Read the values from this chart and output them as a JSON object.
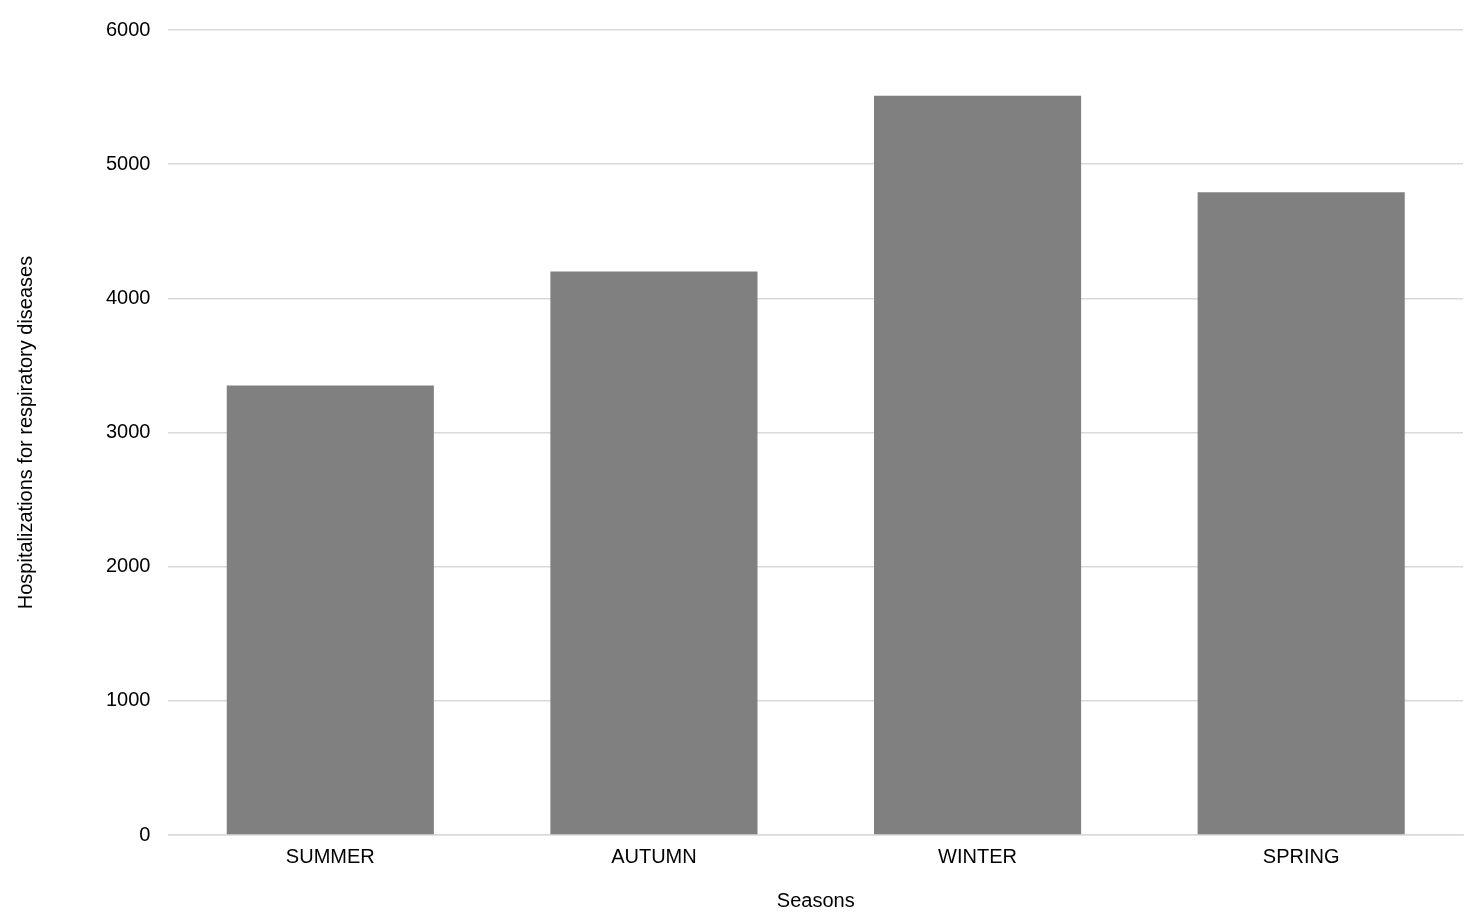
{
  "chart_data": {
    "type": "bar",
    "xlabel": "Seasons",
    "ylabel": "Hospitalizations for respiratory diseases",
    "categories": [
      "SUMMER",
      "AUTUMN",
      "WINTER",
      "SPRING"
    ],
    "values": [
      3350,
      4200,
      5510,
      4790
    ],
    "color": "#808080",
    "ylim": [
      0,
      6000
    ],
    "yticks": [
      0,
      1000,
      2000,
      3000,
      4000,
      5000,
      6000
    ],
    "grid": "y"
  }
}
